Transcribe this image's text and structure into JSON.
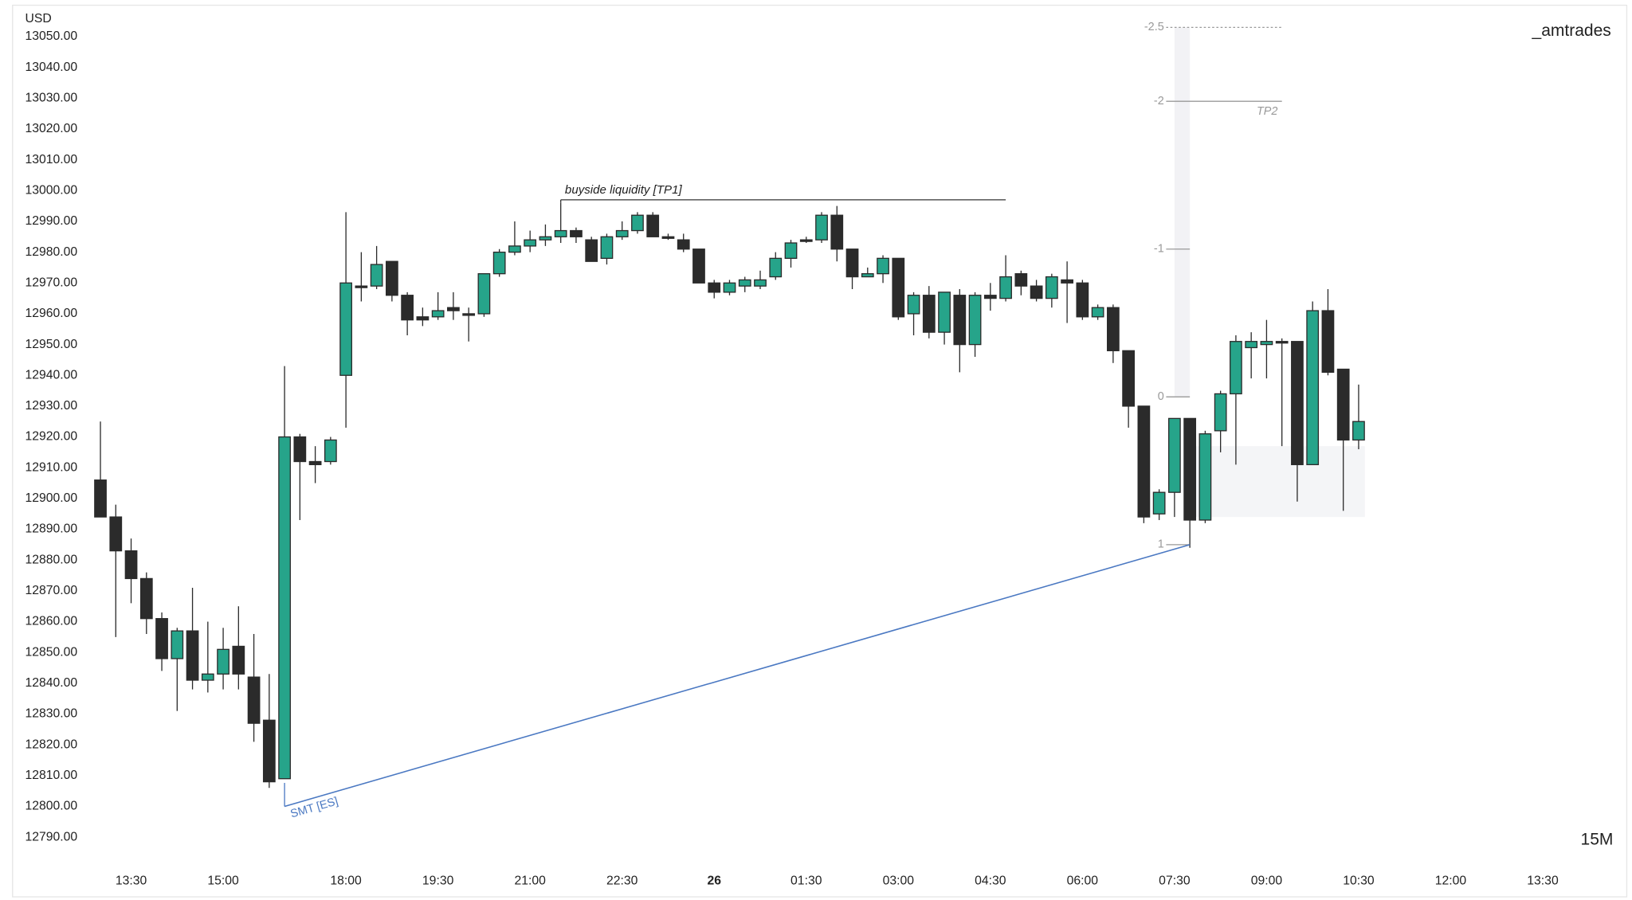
{
  "chart_data": {
    "type": "candlestick",
    "currency_label": "USD",
    "watermark": "_amtrades",
    "timeframe": "15M",
    "up_color": "#26a48a",
    "down_color": "#2b2b2b",
    "categories": [
      null,
      null,
      "13:30",
      null,
      null,
      null,
      null,
      null,
      "15:00",
      null,
      null,
      null,
      null,
      null,
      null,
      null,
      "18:00",
      null,
      null,
      null,
      null,
      null,
      "19:30",
      null,
      null,
      null,
      null,
      null,
      "21:00",
      null,
      null,
      null,
      null,
      null,
      "22:30",
      null,
      null,
      null,
      null,
      null,
      "26",
      null,
      null,
      null,
      null,
      null,
      "01:30",
      null,
      null,
      null,
      null,
      null,
      "03:00",
      null,
      null,
      null,
      null,
      null,
      "04:30",
      null,
      null,
      null,
      null,
      null,
      "06:00",
      null,
      null,
      null,
      null,
      null,
      "07:30",
      null,
      null,
      null,
      null,
      null,
      "09:00",
      null,
      null,
      null,
      null,
      null,
      "10:30",
      null,
      null,
      null,
      null,
      null,
      "12:00",
      null,
      null,
      null,
      null,
      null,
      "13:30"
    ],
    "bold_category": 40,
    "open": [
      12906,
      12894,
      12883,
      12874,
      12861,
      12848,
      12857,
      12841,
      12843,
      12852,
      12842,
      12828,
      12809,
      12920,
      12912,
      12912,
      12940,
      12969,
      12969,
      12977,
      12966,
      12959,
      12959,
      12962,
      12960,
      12960,
      12973,
      12980,
      12982,
      12984,
      12985,
      12987,
      12984,
      12978,
      12985,
      12987,
      12992,
      12985,
      12984,
      12981,
      12970,
      12967,
      12969,
      12969,
      12972,
      12978,
      12984,
      12984,
      12992,
      12981,
      12972,
      12973,
      12978,
      12960,
      12966,
      12954,
      12966,
      12950,
      12966,
      12965,
      12973,
      12969,
      12965,
      12971,
      12970,
      12959,
      12962,
      12948,
      12930,
      12895,
      12902,
      12926,
      12893,
      12922,
      12934,
      12949,
      12950,
      12951,
      12951,
      12911,
      12961,
      12942,
      12919,
      null,
      null,
      null,
      null,
      null,
      null,
      null,
      null,
      null,
      null,
      null,
      null
    ],
    "high": [
      12925,
      12898,
      12887,
      12876,
      12863,
      12858,
      12871,
      12860,
      12858,
      12865,
      12856,
      12843,
      12943,
      12921,
      12917,
      12920,
      12993,
      12980,
      12982,
      12977,
      12967,
      12962,
      12967,
      12967,
      12962,
      12973,
      12981,
      12990,
      12987,
      12989,
      12996,
      12988,
      12985,
      12986,
      12990,
      12993,
      12993,
      12986,
      12986,
      12981,
      12971,
      12971,
      12972,
      12974,
      12980,
      12984,
      12985,
      12993,
      12995,
      12981,
      12975,
      12979,
      12978,
      12967,
      12969,
      12967,
      12968,
      12967,
      12970,
      12979,
      12974,
      12971,
      12973,
      12977,
      12971,
      12963,
      12963,
      12948,
      12930,
      12903,
      12926,
      12926,
      12922,
      12935,
      12953,
      12954,
      12958,
      12952,
      12951,
      12964,
      12968,
      12942,
      12937,
      null,
      null,
      null,
      null,
      null,
      null,
      null,
      null,
      null,
      null,
      null,
      null
    ],
    "low": [
      12894,
      12855,
      12866,
      12856,
      12844,
      12831,
      12838,
      12837,
      12838,
      12838,
      12821,
      12806,
      12809,
      12893,
      12905,
      12911,
      12923,
      12964,
      12968,
      12964,
      12953,
      12956,
      12958,
      12958,
      12951,
      12959,
      12972,
      12979,
      12980,
      12982,
      12983,
      12983,
      12977,
      12976,
      12984,
      12986,
      12985,
      12984,
      12980,
      12970,
      12965,
      12966,
      12967,
      12968,
      12971,
      12975,
      12983,
      12983,
      12977,
      12968,
      12972,
      12970,
      12958,
      12953,
      12952,
      12950,
      12941,
      12946,
      12961,
      12964,
      12966,
      12964,
      12962,
      12957,
      12958,
      12958,
      12944,
      12923,
      12892,
      12893,
      12894,
      12884,
      12892,
      12915,
      12911,
      12939,
      12939,
      12917,
      12899,
      12911,
      12940,
      12896,
      12916,
      null,
      null,
      null,
      null,
      null,
      null,
      null,
      null,
      null,
      null,
      null,
      null
    ],
    "close": [
      12894,
      12883,
      12874,
      12861,
      12848,
      12857,
      12841,
      12843,
      12851,
      12843,
      12827,
      12808,
      12920,
      12912,
      12911,
      12919,
      12970,
      12969,
      12976,
      12966,
      12958,
      12958,
      12961,
      12961,
      12960,
      12973,
      12980,
      12982,
      12984,
      12985,
      12987,
      12985,
      12977,
      12985,
      12987,
      12992,
      12985,
      12985,
      12981,
      12970,
      12967,
      12970,
      12971,
      12971,
      12978,
      12983,
      12984,
      12992,
      12981,
      12972,
      12973,
      12978,
      12959,
      12966,
      12954,
      12967,
      12950,
      12966,
      12965,
      12972,
      12969,
      12965,
      12972,
      12970,
      12959,
      12962,
      12948,
      12930,
      12894,
      12902,
      12926,
      12893,
      12921,
      12934,
      12951,
      12951,
      12951,
      12951,
      12911,
      12961,
      12941,
      12919,
      12925,
      null,
      null,
      null,
      null,
      null,
      null,
      null,
      null,
      null,
      null,
      null,
      null
    ],
    "ylim": [
      12790,
      13050
    ],
    "yticks": [
      {
        "value": 12790,
        "label": "12790.00"
      },
      {
        "value": 12800,
        "label": "12800.00"
      },
      {
        "value": 12810,
        "label": "12810.00"
      },
      {
        "value": 12820,
        "label": "12820.00"
      },
      {
        "value": 12830,
        "label": "12830.00"
      },
      {
        "value": 12840,
        "label": "12840.00"
      },
      {
        "value": 12850,
        "label": "12850.00"
      },
      {
        "value": 12860,
        "label": "12860.00"
      },
      {
        "value": 12870,
        "label": "12870.00"
      },
      {
        "value": 12880,
        "label": "12880.00"
      },
      {
        "value": 12890,
        "label": "12890.00"
      },
      {
        "value": 12900,
        "label": "12900.00"
      },
      {
        "value": 12910,
        "label": "12910.00"
      },
      {
        "value": 12920,
        "label": "12920.00"
      },
      {
        "value": 12930,
        "label": "12930.00"
      },
      {
        "value": 12940,
        "label": "12940.00"
      },
      {
        "value": 12950,
        "label": "12950.00"
      },
      {
        "value": 12960,
        "label": "12960.00"
      },
      {
        "value": 12970,
        "label": "12970.00"
      },
      {
        "value": 12980,
        "label": "12980.00"
      },
      {
        "value": 12990,
        "label": "12990.00"
      },
      {
        "value": 13000,
        "label": "13000.00"
      },
      {
        "value": 13010,
        "label": "13010.00"
      },
      {
        "value": 13020,
        "label": "13020.00"
      },
      {
        "value": 13030,
        "label": "13030.00"
      },
      {
        "value": 13040,
        "label": "13040.00"
      },
      {
        "value": 13050,
        "label": "13050.00"
      }
    ],
    "liquidity": {
      "text": "buyside liquidity [TP1]",
      "price": 12997,
      "from": 30,
      "to": 59
    },
    "smt": {
      "text": "SMT [ES]",
      "from": 12,
      "to": 71,
      "price_from": 12800,
      "price_to": 12885
    },
    "zone": {
      "from": 71,
      "to": 82,
      "low": 12894,
      "high": 12917
    },
    "fib": {
      "levels": [
        -2.5,
        -2,
        -1,
        0,
        1
      ],
      "price_0": 12933,
      "price_1": 12885,
      "index": 70,
      "extend_to": 77,
      "tp_level": -2,
      "tp_label": "TP2"
    }
  }
}
